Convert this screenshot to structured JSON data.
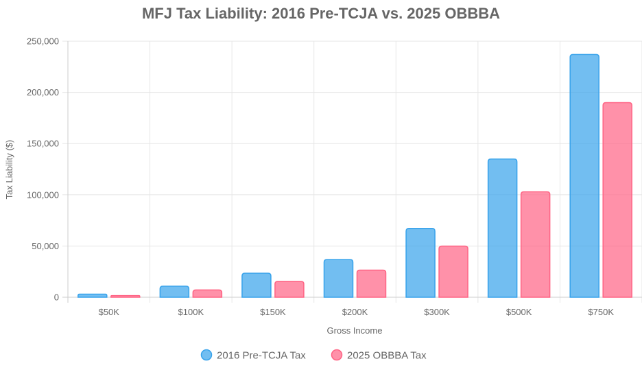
{
  "chart_data": {
    "type": "bar",
    "title": "MFJ Tax Liability: 2016 Pre-TCJA vs. 2025 OBBBA",
    "xlabel": "Gross Income",
    "ylabel": "Tax Liability ($)",
    "categories": [
      "$50K",
      "$100K",
      "$150K",
      "$200K",
      "$300K",
      "$500K",
      "$750K"
    ],
    "ylim": [
      0,
      250000
    ],
    "yticks": [
      0,
      50000,
      100000,
      150000,
      200000,
      250000
    ],
    "ytick_labels": [
      "0",
      "50,000",
      "100,000",
      "150,000",
      "200,000",
      "250,000"
    ],
    "grid": true,
    "legend_position": "bottom",
    "series": [
      {
        "name": "2016 Pre-TCJA Tax",
        "values": [
          3000,
          10800,
          23500,
          36800,
          67200,
          135000,
          237000
        ],
        "color": "#36A2EB",
        "fill": "rgba(54,162,235,0.7)"
      },
      {
        "name": "2025 OBBBA Tax",
        "values": [
          1600,
          7100,
          15500,
          26500,
          49900,
          103000,
          190000
        ],
        "color": "#FF6384",
        "fill": "rgba(255,99,132,0.7)"
      }
    ]
  }
}
